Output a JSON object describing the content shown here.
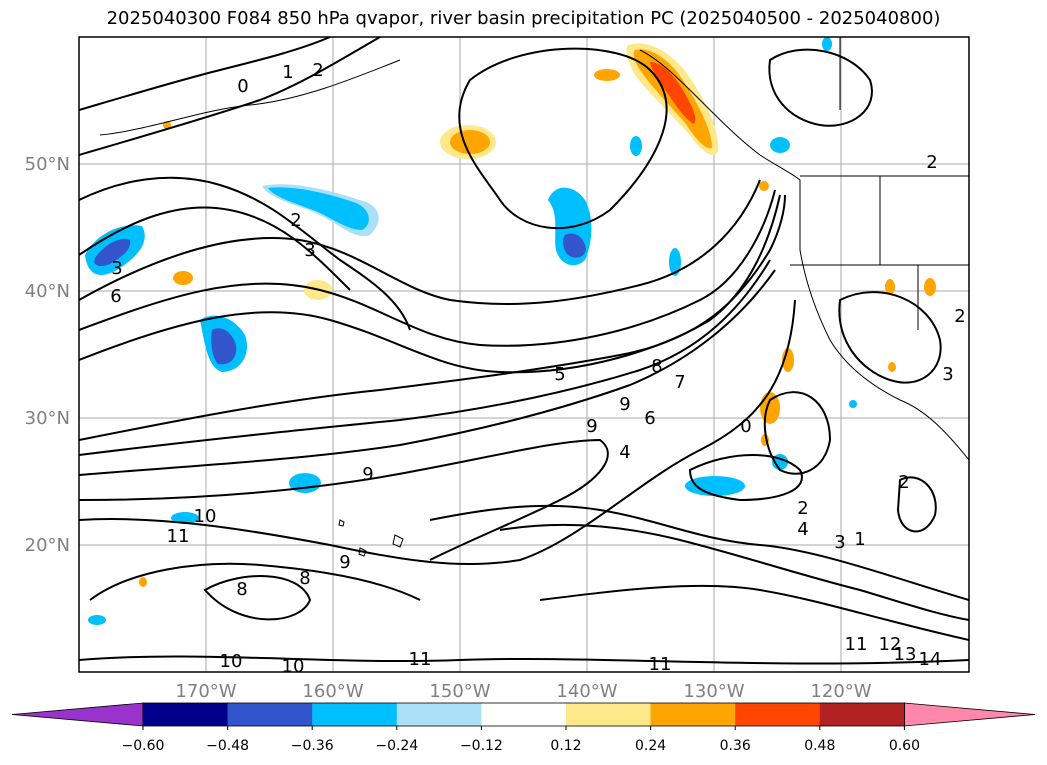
{
  "title": "2025040300 F084 850 hPa qvapor, river basin precipitation PC (2025040500 - 2025040800)",
  "map": {
    "lon_range": [
      -180,
      -110
    ],
    "lat_range": [
      10,
      60
    ],
    "lon_ticks": [
      -170,
      -160,
      -150,
      -140,
      -130,
      -120
    ],
    "lat_ticks": [
      20,
      30,
      40,
      50
    ],
    "lon_labels": [
      "170°W",
      "160°W",
      "150°W",
      "140°W",
      "130°W",
      "120°W"
    ],
    "lat_labels": [
      "20°N",
      "30°N",
      "40°N",
      "50°N"
    ],
    "tick_label_color": "#808080"
  },
  "contour_labels": [
    "0",
    "1",
    "2",
    "2",
    "3",
    "3",
    "6",
    "5",
    "8",
    "7",
    "9",
    "9",
    "6",
    "4",
    "0",
    "9",
    "10",
    "11",
    "9",
    "8",
    "8",
    "10",
    "10",
    "11",
    "11",
    "11",
    "12",
    "13",
    "14",
    "2",
    "4",
    "3",
    "1",
    "2",
    "2",
    "3",
    "2"
  ],
  "colorbar": {
    "ticks": [
      "−0.60",
      "−0.48",
      "−0.36",
      "−0.24",
      "−0.12",
      "0.12",
      "0.24",
      "0.36",
      "0.48",
      "0.60"
    ],
    "colors": [
      "#9933cc",
      "#00008b",
      "#3355cc",
      "#00bfff",
      "#aadff8",
      "#ffffff",
      "#ffe88a",
      "#ffa500",
      "#ff4500",
      "#b22222",
      "#ff88aa"
    ]
  }
}
